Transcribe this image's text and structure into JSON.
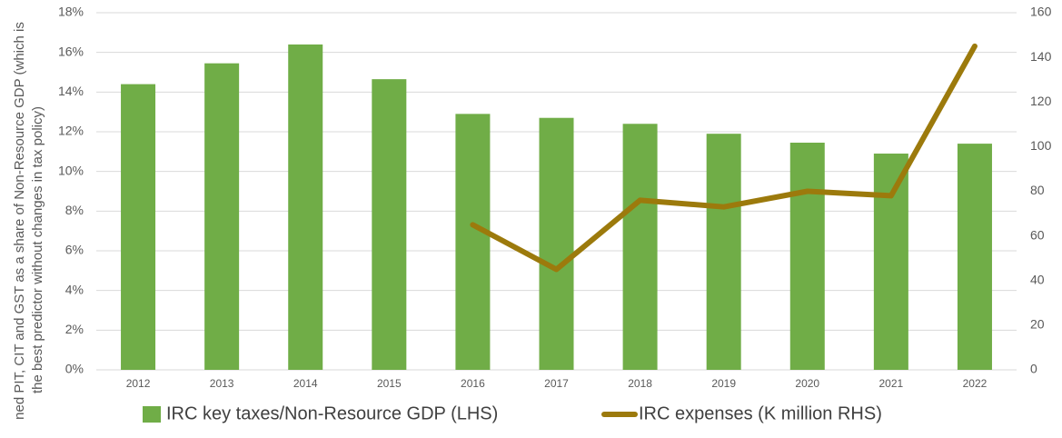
{
  "chart_data": {
    "type": "bar-line",
    "ylabel": [
      "ned PIT, CIT and GST as a share of Non-Resource GDP (which is",
      "the best predictor without changes in tax policy)"
    ],
    "categories": [
      "2012",
      "2013",
      "2014",
      "2015",
      "2016",
      "2017",
      "2018",
      "2019",
      "2020",
      "2021",
      "2022"
    ],
    "series": [
      {
        "name": "IRC key taxes/Non-Resource GDP (LHS)",
        "type": "bar",
        "color": "#70ad47",
        "values": [
          14.4,
          15.45,
          16.4,
          14.65,
          12.9,
          12.7,
          12.4,
          11.9,
          11.45,
          10.9,
          11.4
        ]
      },
      {
        "name": "IRC expenses (K million RHS)",
        "type": "line",
        "axis": "y2",
        "color": "#9c7a0c",
        "values": [
          null,
          null,
          null,
          null,
          65,
          45,
          76,
          73,
          80,
          78,
          145
        ]
      }
    ],
    "ylim": [
      0,
      18
    ],
    "yticks": [
      {
        "value": 0,
        "label": "0%"
      },
      {
        "value": 2,
        "label": "2%"
      },
      {
        "value": 4,
        "label": "4%"
      },
      {
        "value": 6,
        "label": "6%"
      },
      {
        "value": 8,
        "label": "8%"
      },
      {
        "value": 10,
        "label": "10%"
      },
      {
        "value": 12,
        "label": "12%"
      },
      {
        "value": 14,
        "label": "14%"
      },
      {
        "value": 16,
        "label": "16%"
      },
      {
        "value": 18,
        "label": "18%"
      }
    ],
    "y2lim": [
      0,
      160
    ],
    "y2ticks": [
      0,
      20,
      40,
      60,
      80,
      100,
      120,
      140,
      160
    ],
    "grid": true,
    "legend": "bottom"
  }
}
